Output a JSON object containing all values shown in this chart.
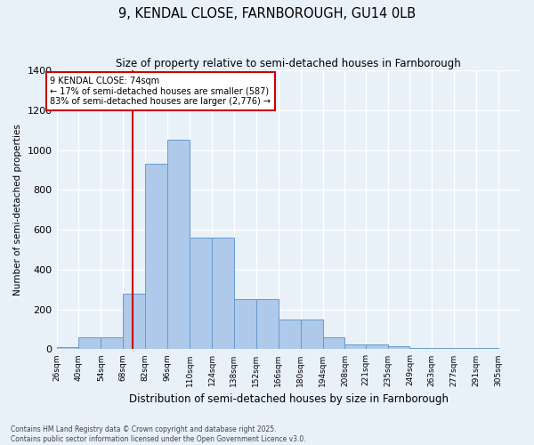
{
  "title": "9, KENDAL CLOSE, FARNBOROUGH, GU14 0LB",
  "subtitle": "Size of property relative to semi-detached houses in Farnborough",
  "xlabel": "Distribution of semi-detached houses by size in Farnborough",
  "ylabel": "Number of semi-detached properties",
  "bar_edges": [
    26,
    40,
    54,
    68,
    82,
    96,
    110,
    124,
    138,
    152,
    166,
    180,
    194,
    208,
    221,
    235,
    249,
    263,
    277,
    291,
    305
  ],
  "bar_heights": [
    10,
    60,
    60,
    280,
    930,
    1050,
    560,
    560,
    250,
    250,
    150,
    150,
    60,
    25,
    25,
    15,
    5,
    5,
    5,
    5,
    2
  ],
  "bar_color": "#aec9ea",
  "bar_edge_color": "#6699cc",
  "vline_x": 74,
  "vline_color": "#cc0000",
  "annotation_text": "9 KENDAL CLOSE: 74sqm\n← 17% of semi-detached houses are smaller (587)\n83% of semi-detached houses are larger (2,776) →",
  "annotation_box_color": "#cc0000",
  "ylim": [
    0,
    1400
  ],
  "yticks": [
    0,
    200,
    400,
    600,
    800,
    1000,
    1200,
    1400
  ],
  "background_color": "#e8f0f8",
  "grid_color": "#ffffff",
  "fig_background": "#e8f0f8",
  "footnote": "Contains HM Land Registry data © Crown copyright and database right 2025.\nContains public sector information licensed under the Open Government Licence v3.0."
}
